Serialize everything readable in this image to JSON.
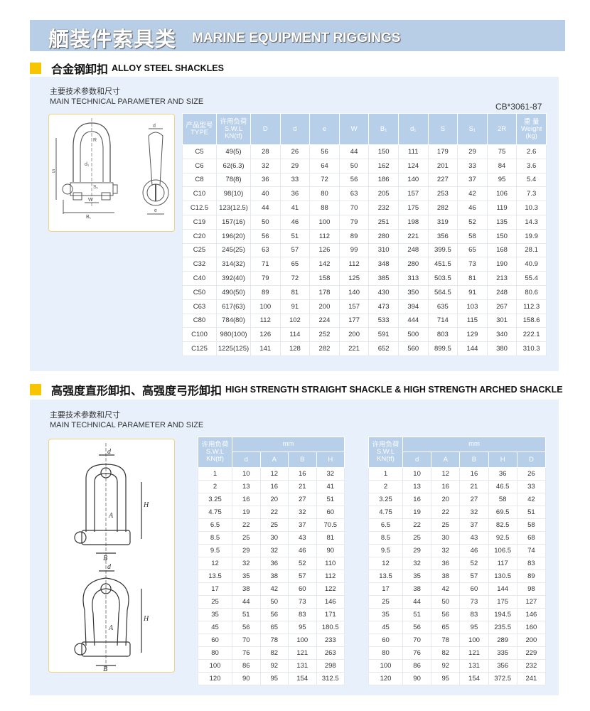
{
  "banner": {
    "title_cn": "舾装件索具类",
    "title_en": "MARINE EQUIPMENT RIGGINGS"
  },
  "accent_colors": {
    "banner": "#b8cee6",
    "section_marker": "#f7c600",
    "panel": "#e8f1fb",
    "table_header": "#b7cfe8"
  },
  "section1": {
    "title_cn": "合金钢卸扣",
    "title_en": "ALLOY STEEL SHACKLES",
    "subtitle_cn": "主要技术参数和尺寸",
    "subtitle_en": "MAIN TECHNICAL PARAMETER AND SIZE",
    "standard": "CB*3061-87",
    "diagram_labels": [
      "S",
      "W",
      "B₁",
      "d",
      "e",
      "R",
      "d₁",
      "S₁"
    ],
    "table": {
      "headers": [
        [
          "产品型号",
          "TYPE"
        ],
        [
          "许用负荷",
          "S.W.L",
          "KN(tf)"
        ],
        [
          "D"
        ],
        [
          "d"
        ],
        [
          "e"
        ],
        [
          "W"
        ],
        [
          "B₁"
        ],
        [
          "d₁"
        ],
        [
          "S"
        ],
        [
          "S₁"
        ],
        [
          "2R"
        ],
        [
          "重 量",
          "Weight",
          "(kg)"
        ]
      ],
      "rows": [
        [
          "C5",
          "49(5)",
          "28",
          "26",
          "56",
          "44",
          "150",
          "111",
          "179",
          "29",
          "75",
          "2.6"
        ],
        [
          "C6",
          "62(6.3)",
          "32",
          "29",
          "64",
          "50",
          "162",
          "124",
          "201",
          "33",
          "84",
          "3.6"
        ],
        [
          "C8",
          "78(8)",
          "36",
          "33",
          "72",
          "56",
          "186",
          "140",
          "227",
          "37",
          "95",
          "5.4"
        ],
        [
          "C10",
          "98(10)",
          "40",
          "36",
          "80",
          "63",
          "205",
          "157",
          "253",
          "42",
          "106",
          "7.3"
        ],
        [
          "C12.5",
          "123(12.5)",
          "44",
          "41",
          "88",
          "70",
          "232",
          "175",
          "282",
          "46",
          "119",
          "10.3"
        ],
        [
          "C19",
          "157(16)",
          "50",
          "46",
          "100",
          "79",
          "251",
          "198",
          "319",
          "52",
          "135",
          "14.3"
        ],
        [
          "C20",
          "196(20)",
          "56",
          "51",
          "112",
          "89",
          "280",
          "221",
          "356",
          "58",
          "150",
          "19.9"
        ],
        [
          "C25",
          "245(25)",
          "63",
          "57",
          "126",
          "99",
          "310",
          "248",
          "399.5",
          "65",
          "168",
          "28.1"
        ],
        [
          "C32",
          "314(32)",
          "71",
          "65",
          "142",
          "112",
          "348",
          "280",
          "451.5",
          "73",
          "190",
          "40.9"
        ],
        [
          "C40",
          "392(40)",
          "79",
          "72",
          "158",
          "125",
          "385",
          "313",
          "503.5",
          "81",
          "213",
          "55.4"
        ],
        [
          "C50",
          "490(50)",
          "89",
          "81",
          "178",
          "140",
          "430",
          "350",
          "564.5",
          "91",
          "248",
          "80.6"
        ],
        [
          "C63",
          "617(63)",
          "100",
          "91",
          "200",
          "157",
          "473",
          "394",
          "635",
          "103",
          "267",
          "112.3"
        ],
        [
          "C80",
          "784(80)",
          "112",
          "102",
          "224",
          "177",
          "533",
          "444",
          "714",
          "115",
          "301",
          "158.6"
        ],
        [
          "C100",
          "980(100)",
          "126",
          "114",
          "252",
          "200",
          "591",
          "500",
          "803",
          "129",
          "340",
          "222.1"
        ],
        [
          "C125",
          "1225(125)",
          "141",
          "128",
          "282",
          "221",
          "652",
          "560",
          "899.5",
          "144",
          "380",
          "310.3"
        ]
      ]
    }
  },
  "section2": {
    "title_cn": "高强度直形卸扣、高强度弓形卸扣",
    "title_en": "HIGH STRENGTH STRAIGHT SHACKLE & HIGH STRENGTH ARCHED SHACKLE",
    "subtitle_cn": "主要技术参数和尺寸",
    "subtitle_en": "MAIN TECHNICAL PARAMETER AND SIZE",
    "diagram_labels": [
      "d",
      "H",
      "A",
      "B"
    ],
    "straight_table": {
      "swl_header": [
        "许用负荷",
        "S.W.L",
        "KN(tf)"
      ],
      "unit": "mm",
      "columns": [
        "d",
        "A",
        "B",
        "H"
      ],
      "rows": [
        [
          "1",
          "10",
          "12",
          "16",
          "32"
        ],
        [
          "2",
          "13",
          "16",
          "21",
          "41"
        ],
        [
          "3.25",
          "16",
          "20",
          "27",
          "51"
        ],
        [
          "4.75",
          "19",
          "22",
          "32",
          "60"
        ],
        [
          "6.5",
          "22",
          "25",
          "37",
          "70.5"
        ],
        [
          "8.5",
          "25",
          "30",
          "43",
          "81"
        ],
        [
          "9.5",
          "29",
          "32",
          "46",
          "90"
        ],
        [
          "12",
          "32",
          "36",
          "52",
          "110"
        ],
        [
          "13.5",
          "35",
          "38",
          "57",
          "112"
        ],
        [
          "17",
          "38",
          "42",
          "60",
          "122"
        ],
        [
          "25",
          "44",
          "50",
          "73",
          "146"
        ],
        [
          "35",
          "51",
          "56",
          "83",
          "171"
        ],
        [
          "45",
          "56",
          "65",
          "95",
          "180.5"
        ],
        [
          "60",
          "70",
          "78",
          "100",
          "233"
        ],
        [
          "80",
          "76",
          "82",
          "121",
          "263"
        ],
        [
          "100",
          "86",
          "92",
          "131",
          "298"
        ],
        [
          "120",
          "90",
          "95",
          "154",
          "312.5"
        ]
      ]
    },
    "arched_table": {
      "swl_header": [
        "许用负荷",
        "S.W.L",
        "KN(tf)"
      ],
      "unit": "mm",
      "columns": [
        "d",
        "A",
        "B",
        "H",
        "D"
      ],
      "rows": [
        [
          "1",
          "10",
          "12",
          "16",
          "36",
          "26"
        ],
        [
          "2",
          "13",
          "16",
          "21",
          "46.5",
          "33"
        ],
        [
          "3.25",
          "16",
          "20",
          "27",
          "58",
          "42"
        ],
        [
          "4.75",
          "19",
          "22",
          "32",
          "69.5",
          "51"
        ],
        [
          "6.5",
          "22",
          "25",
          "37",
          "82.5",
          "58"
        ],
        [
          "8.5",
          "25",
          "30",
          "43",
          "92.5",
          "68"
        ],
        [
          "9.5",
          "29",
          "32",
          "46",
          "106.5",
          "74"
        ],
        [
          "12",
          "32",
          "36",
          "52",
          "117",
          "83"
        ],
        [
          "13.5",
          "35",
          "38",
          "57",
          "130.5",
          "89"
        ],
        [
          "17",
          "38",
          "42",
          "60",
          "144",
          "98"
        ],
        [
          "25",
          "44",
          "50",
          "73",
          "175",
          "127"
        ],
        [
          "35",
          "51",
          "56",
          "83",
          "194.5",
          "146"
        ],
        [
          "45",
          "56",
          "65",
          "95",
          "235.5",
          "160"
        ],
        [
          "60",
          "70",
          "78",
          "100",
          "289",
          "200"
        ],
        [
          "80",
          "76",
          "82",
          "121",
          "335",
          "229"
        ],
        [
          "100",
          "86",
          "92",
          "131",
          "356",
          "232"
        ],
        [
          "120",
          "90",
          "95",
          "154",
          "372.5",
          "241"
        ]
      ]
    }
  }
}
